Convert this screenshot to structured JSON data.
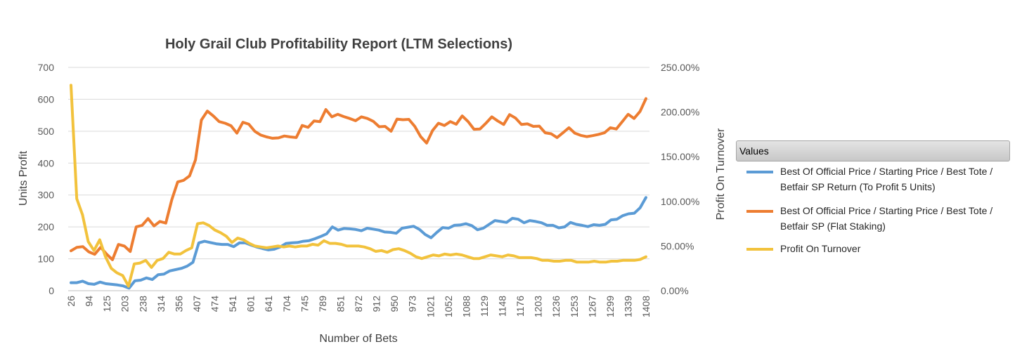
{
  "colors": {
    "series1": "#5b9bd5",
    "series2": "#ed7d31",
    "series3": "#f2c23c",
    "grid": "#d9d9d9",
    "axis": "#bfbfbf"
  },
  "chart_data": {
    "type": "line",
    "title": "Holy Grail Club Profitability Report (LTM Selections)",
    "xlabel": "Number of Bets",
    "ylabel": "Units Profit",
    "y2label": "Profit On Turnover",
    "ylim": [
      0,
      700
    ],
    "y2lim": [
      0,
      2.5
    ],
    "yticks": [
      "0",
      "100",
      "200",
      "300",
      "400",
      "500",
      "600",
      "700"
    ],
    "y2ticks": [
      "0.00%",
      "50.00%",
      "100.00%",
      "150.00%",
      "200.00%",
      "250.00%"
    ],
    "xtick_labels": [
      "26",
      "94",
      "125",
      "203",
      "238",
      "314",
      "356",
      "407",
      "474",
      "541",
      "601",
      "641",
      "704",
      "745",
      "789",
      "851",
      "872",
      "912",
      "950",
      "973",
      "1021",
      "1052",
      "1088",
      "1129",
      "1148",
      "1176",
      "1203",
      "1236",
      "1253",
      "1267",
      "1299",
      "1339",
      "1408"
    ],
    "legend_title": "Values",
    "series": [
      {
        "name": "Best Of Official Price / Starting Price / Best Tote / Betfair SP Return (To Profit 5 Units)",
        "axis": "left",
        "values": [
          25,
          25,
          30,
          22,
          20,
          27,
          22,
          20,
          18,
          15,
          8,
          31,
          33,
          40,
          35,
          50,
          52,
          62,
          66,
          70,
          77,
          89,
          150,
          155,
          151,
          147,
          145,
          145,
          138,
          150,
          150,
          143,
          137,
          132,
          128,
          130,
          137,
          148,
          150,
          151,
          155,
          157,
          163,
          170,
          178,
          200,
          190,
          195,
          194,
          192,
          188,
          196,
          193,
          190,
          184,
          183,
          180,
          196,
          199,
          202,
          192,
          176,
          166,
          183,
          198,
          196,
          205,
          206,
          210,
          204,
          191,
          196,
          208,
          220,
          217,
          214,
          227,
          224,
          213,
          220,
          217,
          213,
          205,
          205,
          197,
          200,
          214,
          208,
          205,
          201,
          207,
          205,
          208,
          222,
          224,
          235,
          241,
          243,
          260,
          292
        ]
      },
      {
        "name": "Best Of Official Price / Starting Price / Best Tote / Betfair SP (Flat Staking)",
        "axis": "left",
        "values": [
          125,
          136,
          138,
          122,
          114,
          136,
          115,
          97,
          145,
          140,
          123,
          200,
          205,
          226,
          203,
          217,
          212,
          285,
          341,
          346,
          360,
          410,
          535,
          563,
          548,
          530,
          525,
          517,
          494,
          528,
          522,
          500,
          488,
          482,
          478,
          479,
          485,
          482,
          480,
          518,
          512,
          532,
          530,
          568,
          545,
          553,
          546,
          540,
          533,
          545,
          540,
          531,
          514,
          515,
          500,
          538,
          536,
          537,
          515,
          483,
          463,
          502,
          525,
          518,
          530,
          522,
          548,
          530,
          506,
          507,
          525,
          545,
          532,
          521,
          552,
          541,
          521,
          523,
          515,
          516,
          495,
          492,
          480,
          495,
          511,
          494,
          487,
          483,
          486,
          490,
          495,
          511,
          507,
          530,
          553,
          540,
          562,
          602
        ]
      },
      {
        "name": "Profit On Turnover",
        "axis": "right",
        "values": [
          2.3,
          1.03,
          0.85,
          0.55,
          0.45,
          0.57,
          0.38,
          0.25,
          0.2,
          0.17,
          0.05,
          0.3,
          0.31,
          0.34,
          0.26,
          0.34,
          0.36,
          0.43,
          0.41,
          0.41,
          0.45,
          0.48,
          0.75,
          0.76,
          0.73,
          0.68,
          0.65,
          0.61,
          0.54,
          0.59,
          0.57,
          0.53,
          0.5,
          0.49,
          0.48,
          0.49,
          0.5,
          0.49,
          0.5,
          0.49,
          0.5,
          0.5,
          0.52,
          0.51,
          0.56,
          0.53,
          0.53,
          0.52,
          0.5,
          0.5,
          0.5,
          0.49,
          0.47,
          0.44,
          0.45,
          0.43,
          0.46,
          0.47,
          0.45,
          0.42,
          0.38,
          0.36,
          0.38,
          0.4,
          0.39,
          0.41,
          0.4,
          0.41,
          0.4,
          0.38,
          0.36,
          0.36,
          0.38,
          0.4,
          0.39,
          0.38,
          0.4,
          0.39,
          0.37,
          0.37,
          0.37,
          0.36,
          0.34,
          0.34,
          0.33,
          0.33,
          0.34,
          0.34,
          0.32,
          0.32,
          0.32,
          0.33,
          0.32,
          0.32,
          0.33,
          0.33,
          0.34,
          0.34,
          0.34,
          0.35,
          0.38
        ]
      }
    ]
  }
}
